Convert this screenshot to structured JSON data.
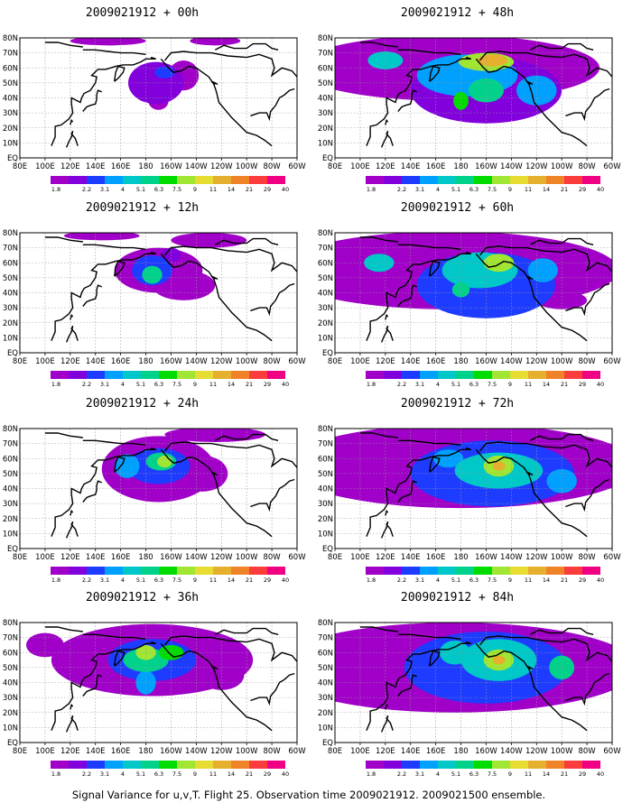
{
  "caption": "Signal Variance for u,v,T. Flight 25. Observation time 2009021912. 2009021500 ensemble.",
  "lon_ticks": [
    "80E",
    "100E",
    "120E",
    "140E",
    "160E",
    "180",
    "160W",
    "140W",
    "120W",
    "100W",
    "80W",
    "60W"
  ],
  "lat_ticks": [
    "80N",
    "70N",
    "60N",
    "50N",
    "40N",
    "30N",
    "20N",
    "10N",
    "EQ"
  ],
  "colorbar": {
    "labels": [
      "1.8",
      "2.2",
      "3.1",
      "4",
      "5.1",
      "6.3",
      "7.5",
      "9",
      "11",
      "14",
      "21",
      "29",
      "40"
    ],
    "colors": [
      "#a000c8",
      "#8200dc",
      "#1e3cff",
      "#00a0ff",
      "#00c8c8",
      "#00d28c",
      "#00dc00",
      "#a0e632",
      "#e6dc32",
      "#e6af2d",
      "#f08228",
      "#fa3c3c",
      "#f00082"
    ]
  },
  "chart_data": [
    {
      "type": "heatmap",
      "title": "2009021912 + 00h",
      "lead_hours": 0,
      "colorbar_labels_visible": true,
      "blobs": [
        {
          "lon": -172,
          "lat": 50,
          "level": 1,
          "rx": 22,
          "ry": 14
        },
        {
          "lon": -165,
          "lat": 57,
          "level": 2,
          "rx": 8,
          "ry": 4
        },
        {
          "lon": -170,
          "lat": 38,
          "level": 0,
          "rx": 8,
          "ry": 6
        },
        {
          "lon": -150,
          "lat": 55,
          "level": 0,
          "rx": 12,
          "ry": 10
        },
        {
          "lon": -125,
          "lat": 78,
          "level": 0,
          "rx": 20,
          "ry": 3
        },
        {
          "lon": 150,
          "lat": 78,
          "level": 0,
          "rx": 30,
          "ry": 3
        }
      ]
    },
    {
      "type": "heatmap",
      "title": "2009021912 + 48h",
      "lead_hours": 48,
      "colorbar_labels_visible": true,
      "blobs": [
        {
          "lon": 170,
          "lat": 60,
          "level": 0,
          "rx": 120,
          "ry": 22
        },
        {
          "lon": -160,
          "lat": 45,
          "level": 1,
          "rx": 60,
          "ry": 22
        },
        {
          "lon": -175,
          "lat": 55,
          "level": 3,
          "rx": 40,
          "ry": 14
        },
        {
          "lon": -160,
          "lat": 64,
          "level": 7,
          "rx": 22,
          "ry": 6
        },
        {
          "lon": -155,
          "lat": 65,
          "level": 9,
          "rx": 12,
          "ry": 4
        },
        {
          "lon": 180,
          "lat": 38,
          "level": 6,
          "rx": 6,
          "ry": 6
        },
        {
          "lon": -160,
          "lat": 45,
          "level": 5,
          "rx": 14,
          "ry": 8
        },
        {
          "lon": 120,
          "lat": 65,
          "level": 4,
          "rx": 14,
          "ry": 6
        },
        {
          "lon": -120,
          "lat": 45,
          "level": 3,
          "rx": 16,
          "ry": 10
        }
      ]
    },
    {
      "type": "heatmap",
      "title": "2009021912 + 12h",
      "lead_hours": 12,
      "colorbar_labels_visible": true,
      "blobs": [
        {
          "lon": -170,
          "lat": 55,
          "level": 0,
          "rx": 35,
          "ry": 15
        },
        {
          "lon": -175,
          "lat": 55,
          "level": 2,
          "rx": 16,
          "ry": 10
        },
        {
          "lon": -175,
          "lat": 52,
          "level": 5,
          "rx": 8,
          "ry": 6
        },
        {
          "lon": -150,
          "lat": 45,
          "level": 0,
          "rx": 25,
          "ry": 10
        },
        {
          "lon": -130,
          "lat": 75,
          "level": 0,
          "rx": 30,
          "ry": 5
        },
        {
          "lon": 145,
          "lat": 78,
          "level": 0,
          "rx": 30,
          "ry": 3
        },
        {
          "lon": -160,
          "lat": 65,
          "level": 1,
          "rx": 8,
          "ry": 5
        }
      ]
    },
    {
      "type": "heatmap",
      "title": "2009021912 + 60h",
      "lead_hours": 60,
      "colorbar_labels_visible": true,
      "blobs": [
        {
          "lon": 170,
          "lat": 55,
          "level": 0,
          "rx": 135,
          "ry": 26
        },
        {
          "lon": -160,
          "lat": 45,
          "level": 2,
          "rx": 55,
          "ry": 22
        },
        {
          "lon": -165,
          "lat": 55,
          "level": 4,
          "rx": 30,
          "ry": 12
        },
        {
          "lon": -150,
          "lat": 60,
          "level": 7,
          "rx": 12,
          "ry": 6
        },
        {
          "lon": 180,
          "lat": 42,
          "level": 5,
          "rx": 7,
          "ry": 5
        },
        {
          "lon": 115,
          "lat": 60,
          "level": 4,
          "rx": 12,
          "ry": 6
        },
        {
          "lon": -115,
          "lat": 55,
          "level": 3,
          "rx": 12,
          "ry": 8
        },
        {
          "lon": -100,
          "lat": 35,
          "level": 0,
          "rx": 20,
          "ry": 6
        }
      ]
    },
    {
      "type": "heatmap",
      "title": "2009021912 + 24h",
      "lead_hours": 24,
      "colorbar_labels_visible": true,
      "blobs": [
        {
          "lon": -170,
          "lat": 53,
          "level": 0,
          "rx": 45,
          "ry": 22
        },
        {
          "lon": -170,
          "lat": 55,
          "level": 2,
          "rx": 25,
          "ry": 12
        },
        {
          "lon": -168,
          "lat": 58,
          "level": 5,
          "rx": 12,
          "ry": 6
        },
        {
          "lon": -165,
          "lat": 58,
          "level": 7,
          "rx": 6,
          "ry": 4
        },
        {
          "lon": 165,
          "lat": 55,
          "level": 3,
          "rx": 10,
          "ry": 8
        },
        {
          "lon": -135,
          "lat": 50,
          "level": 0,
          "rx": 20,
          "ry": 12
        },
        {
          "lon": -125,
          "lat": 76,
          "level": 0,
          "rx": 40,
          "ry": 5
        }
      ]
    },
    {
      "type": "heatmap",
      "title": "2009021912 + 72h",
      "lead_hours": 72,
      "colorbar_labels_visible": true,
      "blobs": [
        {
          "lon": 180,
          "lat": 55,
          "level": 0,
          "rx": 140,
          "ry": 28
        },
        {
          "lon": -155,
          "lat": 50,
          "level": 2,
          "rx": 65,
          "ry": 22
        },
        {
          "lon": -150,
          "lat": 52,
          "level": 4,
          "rx": 35,
          "ry": 12
        },
        {
          "lon": -150,
          "lat": 55,
          "level": 7,
          "rx": 12,
          "ry": 7
        },
        {
          "lon": -150,
          "lat": 55,
          "level": 9,
          "rx": 5,
          "ry": 3
        },
        {
          "lon": -100,
          "lat": 45,
          "level": 3,
          "rx": 12,
          "ry": 8
        },
        {
          "lon": 170,
          "lat": 60,
          "level": 3,
          "rx": 12,
          "ry": 6
        }
      ]
    },
    {
      "type": "heatmap",
      "title": "2009021912 + 36h",
      "lead_hours": 36,
      "colorbar_labels_visible": true,
      "blobs": [
        {
          "lon": -175,
          "lat": 55,
          "level": 0,
          "rx": 80,
          "ry": 24
        },
        {
          "lon": -175,
          "lat": 55,
          "level": 2,
          "rx": 35,
          "ry": 14
        },
        {
          "lon": 180,
          "lat": 55,
          "level": 5,
          "rx": 18,
          "ry": 8
        },
        {
          "lon": 180,
          "lat": 60,
          "level": 7,
          "rx": 8,
          "ry": 5
        },
        {
          "lon": -160,
          "lat": 60,
          "level": 6,
          "rx": 10,
          "ry": 5
        },
        {
          "lon": 180,
          "lat": 40,
          "level": 3,
          "rx": 8,
          "ry": 8
        },
        {
          "lon": -120,
          "lat": 45,
          "level": 0,
          "rx": 18,
          "ry": 10
        },
        {
          "lon": 100,
          "lat": 65,
          "level": 0,
          "rx": 15,
          "ry": 8
        }
      ]
    },
    {
      "type": "heatmap",
      "title": "2009021912 + 84h",
      "lead_hours": 84,
      "colorbar_labels_visible": true,
      "blobs": [
        {
          "lon": 175,
          "lat": 50,
          "level": 0,
          "rx": 145,
          "ry": 30
        },
        {
          "lon": -160,
          "lat": 50,
          "level": 2,
          "rx": 65,
          "ry": 24
        },
        {
          "lon": -150,
          "lat": 55,
          "level": 4,
          "rx": 30,
          "ry": 14
        },
        {
          "lon": -150,
          "lat": 55,
          "level": 7,
          "rx": 12,
          "ry": 7
        },
        {
          "lon": -150,
          "lat": 55,
          "level": 9,
          "rx": 5,
          "ry": 3
        },
        {
          "lon": -100,
          "lat": 50,
          "level": 5,
          "rx": 10,
          "ry": 8
        },
        {
          "lon": 175,
          "lat": 60,
          "level": 4,
          "rx": 12,
          "ry": 8
        }
      ]
    }
  ]
}
